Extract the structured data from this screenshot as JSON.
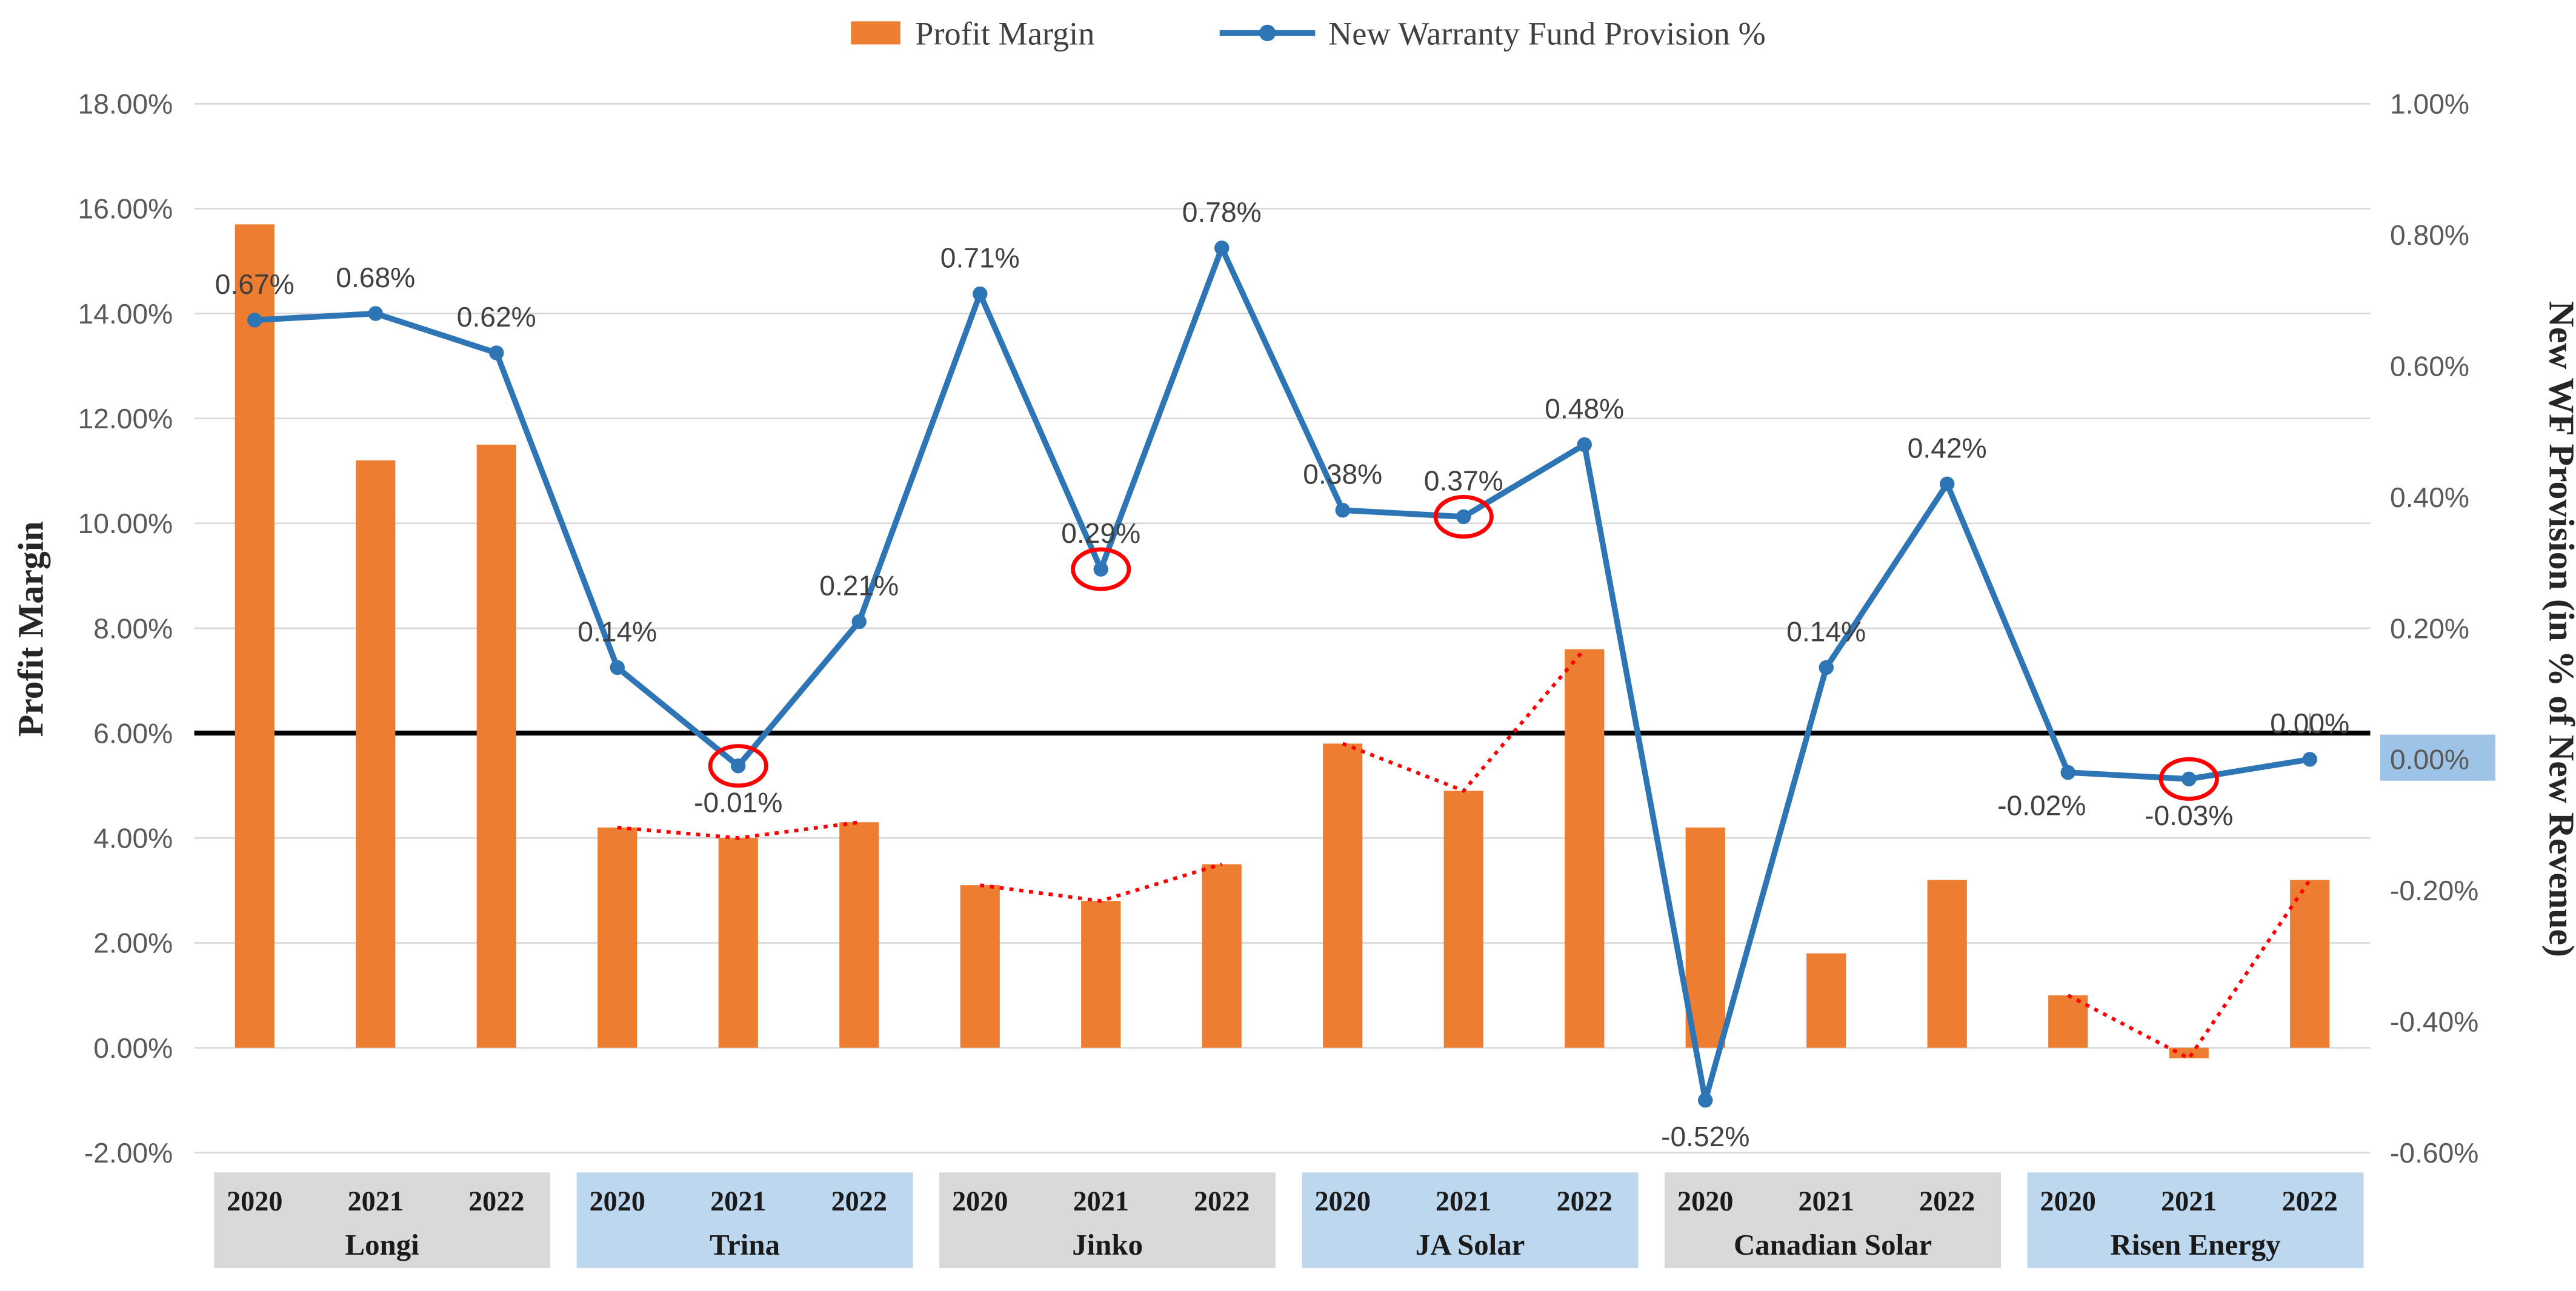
{
  "chart_data": {
    "type": "combo-bar-line",
    "legend": {
      "bar_label": "Profit Margin",
      "line_label": "New Warranty Fund Provision %"
    },
    "left_axis": {
      "title": "Profit Margin",
      "min": -2.0,
      "max": 18.0,
      "ticks": [
        {
          "v": 18,
          "label": "18.00%"
        },
        {
          "v": 16,
          "label": "16.00%"
        },
        {
          "v": 14,
          "label": "14.00%"
        },
        {
          "v": 12,
          "label": "12.00%"
        },
        {
          "v": 10,
          "label": "10.00%"
        },
        {
          "v": 8,
          "label": "8.00%"
        },
        {
          "v": 6,
          "label": "6.00%"
        },
        {
          "v": 4,
          "label": "4.00%"
        },
        {
          "v": 2,
          "label": "2.00%"
        },
        {
          "v": 0,
          "label": "0.00%"
        },
        {
          "v": -2,
          "label": "-2.00%"
        }
      ]
    },
    "right_axis": {
      "title": "New WF Provision (in % of New Revenue)",
      "min": -0.6,
      "max": 1.0,
      "ticks": [
        {
          "v": 1.0,
          "label": "1.00%"
        },
        {
          "v": 0.8,
          "label": "0.80%"
        },
        {
          "v": 0.6,
          "label": "0.60%"
        },
        {
          "v": 0.4,
          "label": "0.40%"
        },
        {
          "v": 0.2,
          "label": "0.20%"
        },
        {
          "v": 0.0,
          "label": "0.00%",
          "highlight": true
        },
        {
          "v": -0.2,
          "label": "-0.20%"
        },
        {
          "v": -0.4,
          "label": "-0.40%"
        },
        {
          "v": -0.6,
          "label": "-0.60%"
        }
      ]
    },
    "reference_line": {
      "at_left_axis_value": 6.0,
      "color": "#000000"
    },
    "colors": {
      "bar": "#ED7D31",
      "line": "#2E75B6",
      "trend": "#FF0000",
      "grid": "#D9D9D9",
      "highlight": "#9DC3E6",
      "band_gray": "#D9D9D9",
      "band_blue": "#BDD7EE"
    },
    "groups": [
      {
        "name": "Longi",
        "band": "gray",
        "years": [
          "2020",
          "2021",
          "2022"
        ],
        "profit_margin_pct": [
          15.7,
          11.2,
          11.5
        ],
        "provision_pct": [
          0.67,
          0.68,
          0.62
        ],
        "provision_labels": [
          "0.67%",
          "0.68%",
          "0.62%"
        ],
        "label_pos": [
          "above",
          "above",
          "above"
        ],
        "circled": [
          false,
          false,
          false
        ],
        "red_trendline": false
      },
      {
        "name": "Trina",
        "band": "blue",
        "years": [
          "2020",
          "2021",
          "2022"
        ],
        "profit_margin_pct": [
          4.2,
          4.0,
          4.3
        ],
        "provision_pct": [
          0.14,
          -0.01,
          0.21
        ],
        "provision_labels": [
          "0.14%",
          "-0.01%",
          "0.21%"
        ],
        "label_pos": [
          "above",
          "below",
          "above"
        ],
        "circled": [
          false,
          true,
          false
        ],
        "red_trendline": true
      },
      {
        "name": "Jinko",
        "band": "gray",
        "years": [
          "2020",
          "2021",
          "2022"
        ],
        "profit_margin_pct": [
          3.1,
          2.8,
          3.5
        ],
        "provision_pct": [
          0.71,
          0.29,
          0.78
        ],
        "provision_labels": [
          "0.71%",
          "0.29%",
          "0.78%"
        ],
        "label_pos": [
          "above",
          "above",
          "above"
        ],
        "circled": [
          false,
          true,
          false
        ],
        "red_trendline": true
      },
      {
        "name": "JA Solar",
        "band": "blue",
        "years": [
          "2020",
          "2021",
          "2022"
        ],
        "profit_margin_pct": [
          5.8,
          4.9,
          7.6
        ],
        "provision_pct": [
          0.38,
          0.37,
          0.48
        ],
        "provision_labels": [
          "0.38%",
          "0.37%",
          "0.48%"
        ],
        "label_pos": [
          "above",
          "above",
          "above"
        ],
        "circled": [
          false,
          true,
          false
        ],
        "red_trendline": true
      },
      {
        "name": "Canadian Solar",
        "band": "gray",
        "years": [
          "2020",
          "2021",
          "2022"
        ],
        "profit_margin_pct": [
          4.2,
          1.8,
          3.2
        ],
        "provision_pct": [
          -0.52,
          0.14,
          0.42
        ],
        "provision_labels": [
          "-0.52%",
          "0.14%",
          "0.42%"
        ],
        "label_pos": [
          "below",
          "above",
          "above"
        ],
        "circled": [
          false,
          false,
          false
        ],
        "red_trendline": false
      },
      {
        "name": "Risen Energy",
        "band": "blue",
        "years": [
          "2020",
          "2021",
          "2022"
        ],
        "profit_margin_pct": [
          1.0,
          -0.2,
          3.2
        ],
        "provision_pct": [
          -0.02,
          -0.03,
          0.0
        ],
        "provision_labels": [
          "-0.02%",
          "-0.03%",
          "0.00%"
        ],
        "label_pos": [
          "below-left",
          "below",
          "above"
        ],
        "circled": [
          false,
          true,
          false
        ],
        "red_trendline": true,
        "label_leader": [
          false,
          false,
          true
        ]
      }
    ]
  }
}
